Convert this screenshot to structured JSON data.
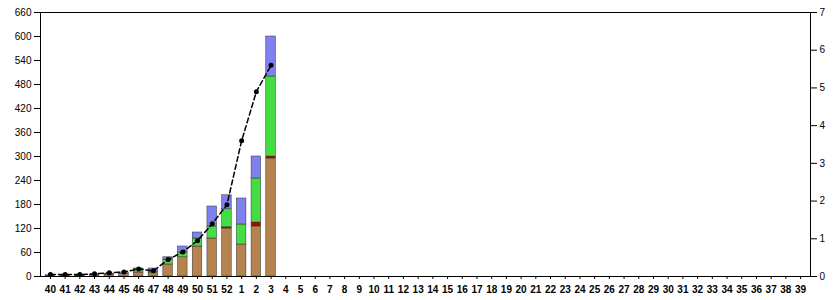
{
  "chart_data": {
    "type": "bar",
    "stacked": true,
    "categories": [
      "40",
      "41",
      "42",
      "43",
      "44",
      "45",
      "46",
      "47",
      "48",
      "49",
      "50",
      "51",
      "52",
      "1",
      "2",
      "3",
      "4",
      "5",
      "6",
      "7",
      "8",
      "9",
      "10",
      "11",
      "12",
      "13",
      "14",
      "15",
      "16",
      "17",
      "18",
      "19",
      "20",
      "21",
      "22",
      "23",
      "24",
      "25",
      "26",
      "27",
      "28",
      "29",
      "30",
      "31",
      "32",
      "33",
      "34",
      "35",
      "36",
      "37",
      "38",
      "39"
    ],
    "ylim": [
      0,
      660
    ],
    "yticks": [
      0,
      60,
      120,
      180,
      240,
      300,
      360,
      420,
      480,
      540,
      600,
      660
    ],
    "y2lim": [
      0,
      7
    ],
    "y2ticks": [
      0,
      1,
      2,
      3,
      4,
      5,
      6,
      7
    ],
    "grid": false,
    "series": [
      {
        "color": "#b5834f",
        "values": [
          2,
          2,
          2,
          3,
          5,
          6,
          10,
          8,
          30,
          48,
          75,
          95,
          120,
          80,
          125,
          295,
          null,
          null,
          null,
          null,
          null,
          null,
          null,
          null,
          null,
          null,
          null,
          null,
          null,
          null,
          null,
          null,
          null,
          null,
          null,
          null,
          null,
          null,
          null,
          null,
          null,
          null,
          null,
          null,
          null,
          null,
          null,
          null,
          null,
          null,
          null,
          null
        ]
      },
      {
        "color": "#c00000",
        "values": [
          0,
          0,
          0,
          0,
          0,
          0,
          0,
          0,
          0,
          0,
          0,
          0,
          3,
          0,
          10,
          5,
          null,
          null,
          null,
          null,
          null,
          null,
          null,
          null,
          null,
          null,
          null,
          null,
          null,
          null,
          null,
          null,
          null,
          null,
          null,
          null,
          null,
          null,
          null,
          null,
          null,
          null,
          null,
          null,
          null,
          null,
          null,
          null,
          null,
          null,
          null,
          null
        ]
      },
      {
        "color": "#44dd44",
        "values": [
          0,
          0,
          0,
          1,
          1,
          0,
          8,
          4,
          12,
          12,
          20,
          30,
          45,
          50,
          110,
          200,
          null,
          null,
          null,
          null,
          null,
          null,
          null,
          null,
          null,
          null,
          null,
          null,
          null,
          null,
          null,
          null,
          null,
          null,
          null,
          null,
          null,
          null,
          null,
          null,
          null,
          null,
          null,
          null,
          null,
          null,
          null,
          null,
          null,
          null,
          null,
          null
        ]
      },
      {
        "color": "#8080f0",
        "values": [
          1,
          1,
          1,
          1,
          1,
          4,
          2,
          8,
          6,
          15,
          15,
          50,
          35,
          65,
          55,
          100,
          null,
          null,
          null,
          null,
          null,
          null,
          null,
          null,
          null,
          null,
          null,
          null,
          null,
          null,
          null,
          null,
          null,
          null,
          null,
          null,
          null,
          null,
          null,
          null,
          null,
          null,
          null,
          null,
          null,
          null,
          null,
          null,
          null,
          null,
          null,
          null
        ]
      },
      {
        "type": "line",
        "axis": "y2",
        "color": "#000000",
        "line_style": "dashed",
        "marker": "circle",
        "values": [
          0.05,
          0.05,
          0.05,
          0.07,
          0.1,
          0.12,
          0.2,
          0.15,
          0.45,
          0.65,
          0.95,
          1.4,
          1.9,
          3.6,
          4.9,
          5.6,
          null,
          null,
          null,
          null,
          null,
          null,
          null,
          null,
          null,
          null,
          null,
          null,
          null,
          null,
          null,
          null,
          null,
          null,
          null,
          null,
          null,
          null,
          null,
          null,
          null,
          null,
          null,
          null,
          null,
          null,
          null,
          null,
          null,
          null,
          null,
          null
        ]
      }
    ]
  }
}
